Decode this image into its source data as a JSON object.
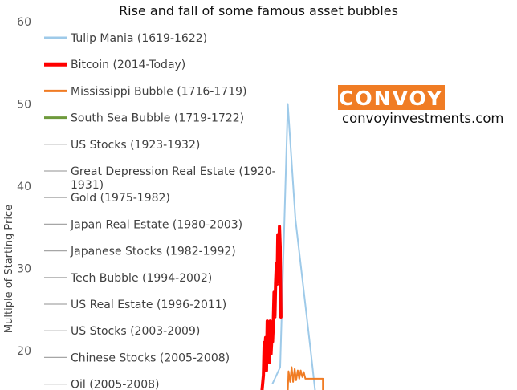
{
  "chart_data": {
    "type": "line",
    "title": "Rise and fall of some famous asset bubbles",
    "ylabel": "Multiple of Starting Price",
    "ylim": [
      15,
      60
    ],
    "yticks": [
      "20",
      "30",
      "40",
      "50",
      "60"
    ],
    "legend_position": "left",
    "grid": false,
    "series": [
      {
        "name": "Tulip Mania (1619-1622)",
        "color": "#9ecae9",
        "width": 2,
        "values": [
          [
            1,
            16
          ],
          [
            2,
            18
          ],
          [
            3,
            50
          ],
          [
            4,
            36
          ],
          [
            5,
            28
          ],
          [
            6,
            20
          ],
          [
            6.6,
            15
          ]
        ]
      },
      {
        "name": "Bitcoin (2014-Today)",
        "color": "#ff0000",
        "width": 4,
        "values": [
          [
            -0.4,
            15
          ],
          [
            -0.2,
            17
          ],
          [
            -0.1,
            21
          ],
          [
            0,
            19.6
          ],
          [
            0.1,
            21.6
          ],
          [
            0.2,
            17.6
          ],
          [
            0.3,
            23.6
          ],
          [
            0.4,
            19.6
          ],
          [
            0.5,
            22.6
          ],
          [
            0.6,
            18.6
          ],
          [
            0.7,
            23.6
          ],
          [
            0.8,
            19.6
          ],
          [
            0.9,
            21.6
          ],
          [
            1.0,
            21.1
          ],
          [
            1.1,
            23.1
          ],
          [
            1.2,
            27.1
          ],
          [
            1.3,
            24.1
          ],
          [
            1.4,
            28.1
          ],
          [
            1.5,
            30.6
          ],
          [
            1.6,
            28.1
          ],
          [
            1.7,
            34.1
          ],
          [
            1.8,
            31.1
          ],
          [
            1.9,
            35.1
          ],
          [
            2.0,
            32.6
          ],
          [
            2.1,
            24.1
          ]
        ]
      },
      {
        "name": "Mississippi Bubble (1716-1719)",
        "color": "#f07c24",
        "width": 2,
        "values": [
          [
            3,
            15
          ],
          [
            3.1,
            17.5
          ],
          [
            3.3,
            16.2
          ],
          [
            3.5,
            18
          ],
          [
            3.7,
            16.2
          ],
          [
            3.9,
            17.8
          ],
          [
            4.1,
            16.4
          ],
          [
            4.3,
            17.6
          ],
          [
            4.5,
            16.6
          ],
          [
            4.7,
            17.6
          ],
          [
            4.9,
            16.8
          ],
          [
            5.1,
            17.4
          ],
          [
            5.3,
            16.6
          ],
          [
            5.5,
            16.6
          ],
          [
            7.6,
            16.6
          ],
          [
            7.6,
            15
          ]
        ]
      },
      {
        "name": "South Sea Bubble (1719-1722)",
        "color": "#6e9a3c",
        "width": 2,
        "values": []
      },
      {
        "name": "US Stocks (1923-1932)",
        "color": "#a6a6a6",
        "width": 1,
        "values": []
      },
      {
        "name": "Great Depression Real Estate (1920-1931)",
        "color": "#a6a6a6",
        "width": 1,
        "values": []
      },
      {
        "name": "Gold (1975-1982)",
        "color": "#a6a6a6",
        "width": 1,
        "values": []
      },
      {
        "name": "Japan Real Estate (1980-2003)",
        "color": "#a6a6a6",
        "width": 1,
        "values": []
      },
      {
        "name": "Japanese Stocks (1982-1992)",
        "color": "#a6a6a6",
        "width": 1,
        "values": []
      },
      {
        "name": "Tech Bubble (1994-2002)",
        "color": "#a6a6a6",
        "width": 1,
        "values": []
      },
      {
        "name": "US Real Estate (1996-2011)",
        "color": "#a6a6a6",
        "width": 1,
        "values": []
      },
      {
        "name": "US Stocks (2003-2009)",
        "color": "#a6a6a6",
        "width": 1,
        "values": []
      },
      {
        "name": "Chinese Stocks (2005-2008)",
        "color": "#a6a6a6",
        "width": 1,
        "values": []
      },
      {
        "name": "Oil (2005-2008)",
        "color": "#a6a6a6",
        "width": 1,
        "values": []
      }
    ]
  },
  "brand": {
    "name": "CONVOY",
    "url": "convoyinvestments.com",
    "accent_color": "#f07c24"
  }
}
